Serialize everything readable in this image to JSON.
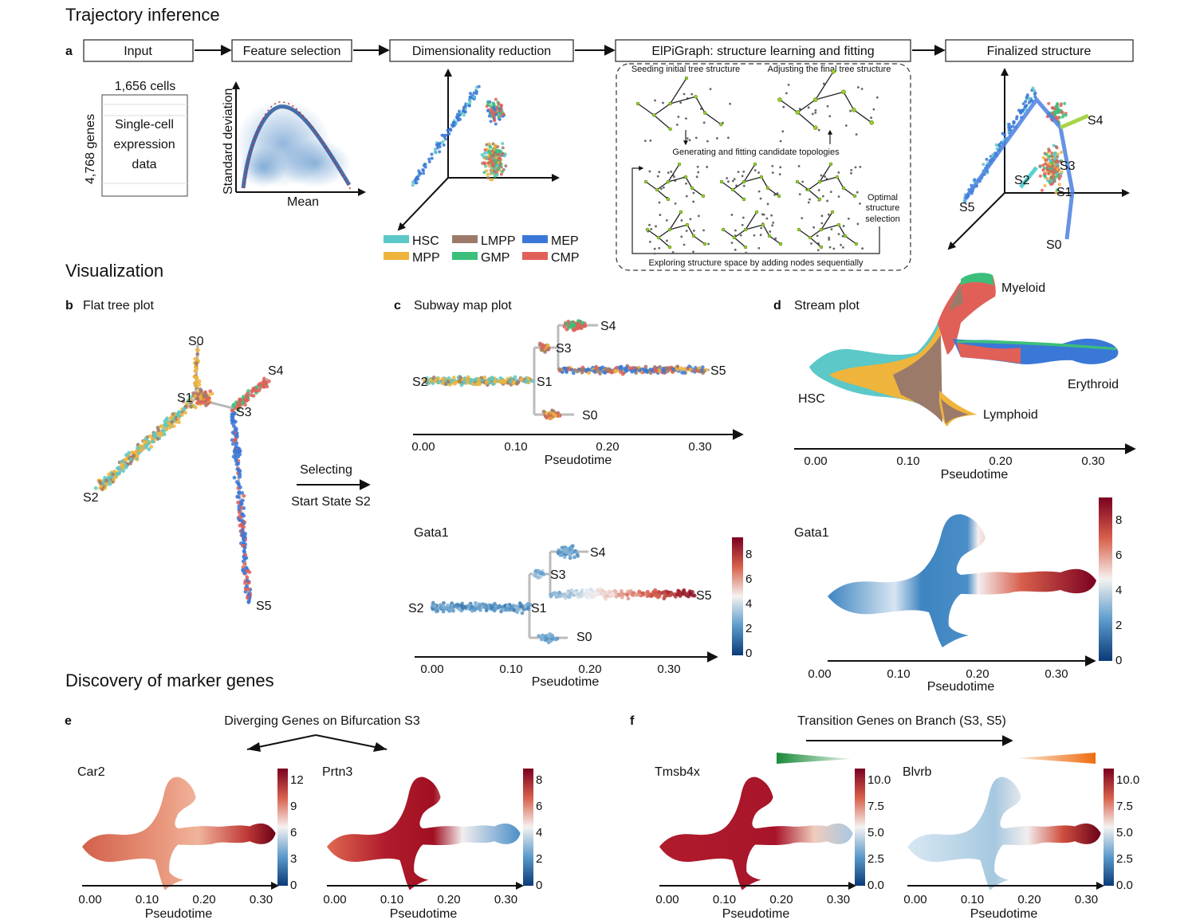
{
  "sections": {
    "trajectory": "Trajectory inference",
    "visualization": "Visualization",
    "discovery": "Discovery of marker genes"
  },
  "panel_a": {
    "letter": "a",
    "steps": [
      "Input",
      "Feature selection",
      "Dimensionality reduction",
      "ElPiGraph: structure learning and fitting",
      "Finalized structure"
    ],
    "cells_label": "1,656 cells",
    "genes_label": "4,768 genes",
    "matrix_lines": [
      "Single-cell",
      "expression",
      "data"
    ],
    "feature_xlabel": "Mean",
    "feature_ylabel": "Standard deviation",
    "elpi": {
      "seed": "Seeding initial tree structure",
      "adjust": "Adjusting the final tree structure",
      "generate": "Generating and fitting candidate topologies",
      "optimal": [
        "Optimal",
        "structure",
        "selection"
      ],
      "explore": "Exploring structure space by adding nodes sequentially"
    },
    "final_states": [
      "S4",
      "S3",
      "S2",
      "S1",
      "S5",
      "S0"
    ]
  },
  "legend": [
    {
      "name": "HSC",
      "color": "#5cc8c8"
    },
    {
      "name": "LMPP",
      "color": "#9c7a6a"
    },
    {
      "name": "MEP",
      "color": "#3a78d8"
    },
    {
      "name": "MPP",
      "color": "#efb43c"
    },
    {
      "name": "GMP",
      "color": "#3cbf7a"
    },
    {
      "name": "CMP",
      "color": "#e06058"
    }
  ],
  "panel_b": {
    "letter": "b",
    "title": "Flat tree plot",
    "states": [
      "S0",
      "S4",
      "S1",
      "S3",
      "S2",
      "S5"
    ],
    "arrow_line1": "Selecting",
    "arrow_line2": "Start State S2"
  },
  "panel_c": {
    "letter": "c",
    "title": "Subway map plot",
    "gene": "Gata1",
    "states": [
      "S4",
      "S3",
      "S2",
      "S1",
      "S5",
      "S0"
    ],
    "ticks": [
      "0.00",
      "0.10",
      "0.20",
      "0.30"
    ],
    "xlabel": "Pseudotime",
    "cbar_ticks": [
      "8",
      "6",
      "4",
      "2",
      "0"
    ]
  },
  "panel_d": {
    "letter": "d",
    "title": "Stream plot",
    "branches": [
      "Myeloid",
      "HSC",
      "Erythroid",
      "Lymphoid"
    ],
    "gene": "Gata1",
    "ticks": [
      "0.00",
      "0.10",
      "0.20",
      "0.30"
    ],
    "xlabel": "Pseudotime",
    "cbar_ticks": [
      "8",
      "6",
      "4",
      "2",
      "0"
    ]
  },
  "panel_e": {
    "letter": "e",
    "title": "Diverging Genes on Bifurcation S3",
    "genes": [
      {
        "name": "Car2",
        "cbar": [
          "12",
          "9",
          "6",
          "3",
          "0"
        ]
      },
      {
        "name": "Prtn3",
        "cbar": [
          "8",
          "6",
          "4",
          "2",
          "0"
        ]
      }
    ],
    "ticks": [
      "0.00",
      "0.10",
      "0.20",
      "0.30"
    ],
    "xlabel": "Pseudotime"
  },
  "panel_f": {
    "letter": "f",
    "title": "Transition Genes on Branch (S3, S5)",
    "genes": [
      {
        "name": "Tmsb4x",
        "cbar": [
          "10.0",
          "7.5",
          "5.0",
          "2.5",
          "0.0"
        ]
      },
      {
        "name": "Blvrb",
        "cbar": [
          "10.0",
          "7.5",
          "5.0",
          "2.5",
          "0.0"
        ]
      }
    ],
    "ticks": [
      "0.00",
      "0.10",
      "0.20",
      "0.30"
    ],
    "xlabel": "Pseudotime"
  }
}
